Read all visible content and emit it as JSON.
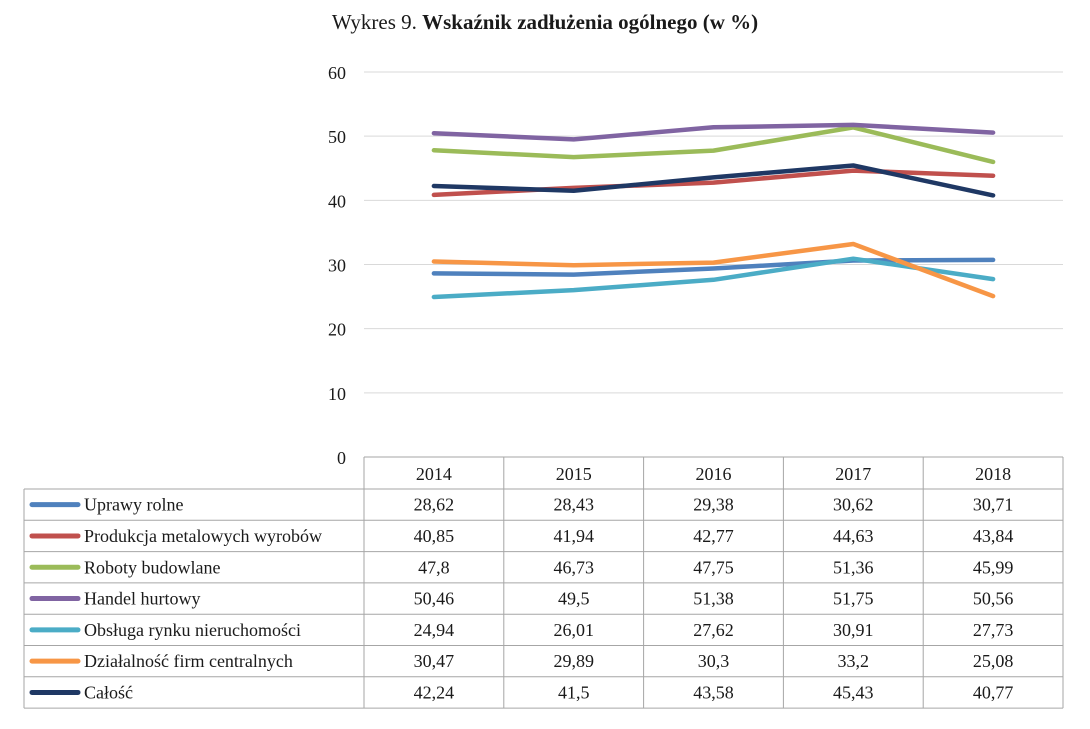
{
  "title": {
    "lead": "Wykres 9.",
    "main": "Wskaźnik zadłużenia ogólnego (w %)"
  },
  "chart_data": {
    "type": "line",
    "title": "Wykres 9. Wskaźnik zadłużenia ogólnego (w %)",
    "categories": [
      "2014",
      "2015",
      "2016",
      "2017",
      "2018"
    ],
    "ylim": [
      0,
      60
    ],
    "yticks": [
      0,
      10,
      20,
      30,
      40,
      50,
      60
    ],
    "grid": true,
    "legend": "data-table-below",
    "series": [
      {
        "name": "Uprawy rolne",
        "color": "#4f81bd",
        "values": [
          28.62,
          28.43,
          29.38,
          30.62,
          30.71
        ],
        "labels": [
          "28,62",
          "28,43",
          "29,38",
          "30,62",
          "30,71"
        ]
      },
      {
        "name": "Produkcja metalowych wyrobów",
        "color": "#c0504d",
        "values": [
          40.85,
          41.94,
          42.77,
          44.63,
          43.84
        ],
        "labels": [
          "40,85",
          "41,94",
          "42,77",
          "44,63",
          "43,84"
        ]
      },
      {
        "name": "Roboty budowlane",
        "color": "#9bbb59",
        "values": [
          47.8,
          46.73,
          47.75,
          51.36,
          45.99
        ],
        "labels": [
          "47,8",
          "46,73",
          "47,75",
          "51,36",
          "45,99"
        ]
      },
      {
        "name": "Handel hurtowy",
        "color": "#8064a2",
        "values": [
          50.46,
          49.5,
          51.38,
          51.75,
          50.56
        ],
        "labels": [
          "50,46",
          "49,5",
          "51,38",
          "51,75",
          "50,56"
        ]
      },
      {
        "name": "Obsługa rynku nieruchomości",
        "color": "#4bacc6",
        "values": [
          24.94,
          26.01,
          27.62,
          30.91,
          27.73
        ],
        "labels": [
          "24,94",
          "26,01",
          "27,62",
          "30,91",
          "27,73"
        ]
      },
      {
        "name": "Działalność firm centralnych",
        "color": "#f79646",
        "values": [
          30.47,
          29.89,
          30.3,
          33.2,
          25.08
        ],
        "labels": [
          "30,47",
          "29,89",
          "30,3",
          "33,2",
          "25,08"
        ]
      },
      {
        "name": "Całość",
        "color": "#1f3864",
        "values": [
          42.24,
          41.5,
          43.58,
          45.43,
          40.77
        ],
        "labels": [
          "42,24",
          "41,5",
          "43,58",
          "45,43",
          "40,77"
        ]
      }
    ]
  }
}
